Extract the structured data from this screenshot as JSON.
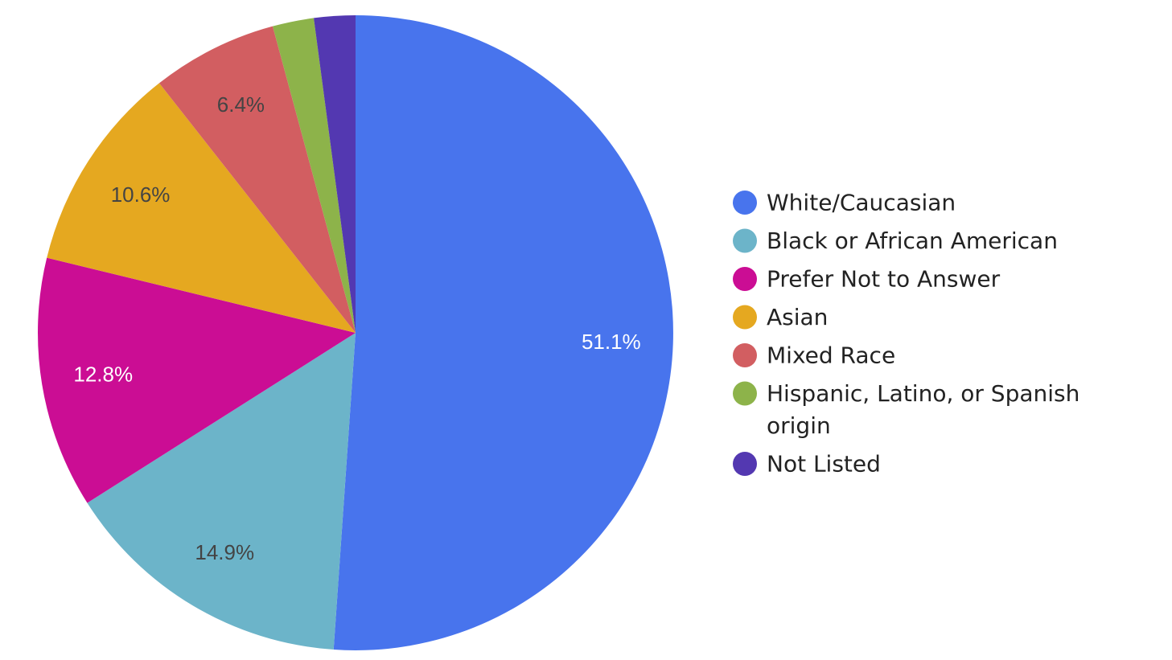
{
  "chart_data": {
    "type": "pie",
    "start_angle_deg": 0,
    "direction": "clockwise",
    "legend_position": "right",
    "series": [
      {
        "name": "White/Caucasian",
        "value": 51.1,
        "label": "51.1%",
        "color": "#4874ed",
        "label_color": "#ffffff"
      },
      {
        "name": "Black or African American",
        "value": 14.9,
        "label": "14.9%",
        "color": "#6cb4c9",
        "label_color": "#444444"
      },
      {
        "name": "Prefer Not to Answer",
        "value": 12.8,
        "label": "12.8%",
        "color": "#cb0d94",
        "label_color": "#ffffff"
      },
      {
        "name": "Asian",
        "value": 10.6,
        "label": "10.6%",
        "color": "#e5a820",
        "label_color": "#444444"
      },
      {
        "name": "Mixed Race",
        "value": 6.4,
        "label": "6.4%",
        "color": "#d25e61",
        "label_color": "#444444"
      },
      {
        "name": "Hispanic, Latino, or Spanish origin",
        "value": 2.1,
        "label": "",
        "color": "#8db34a",
        "label_color": "#444444"
      },
      {
        "name": "Not Listed",
        "value": 2.1,
        "label": "",
        "color": "#5338b1",
        "label_color": "#444444"
      }
    ]
  }
}
